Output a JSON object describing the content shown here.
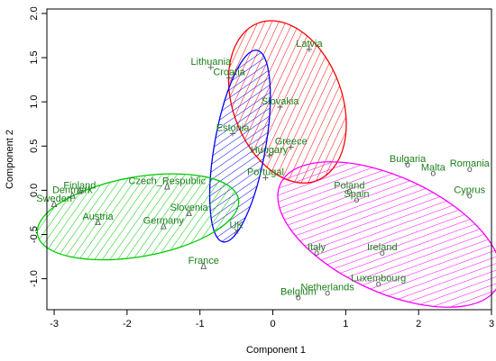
{
  "chart_data": {
    "type": "scatter",
    "xlabel": "Component 1",
    "ylabel": "Component 2",
    "xlim": [
      -3.1,
      3.0
    ],
    "ylim": [
      -1.35,
      2.05
    ],
    "x_ticks": [
      -3,
      -2,
      -1,
      0,
      1,
      2,
      3
    ],
    "y_ticks": [
      -1.0,
      -0.5,
      0.0,
      0.5,
      1.0,
      1.5,
      2.0
    ],
    "label_color": "#1a7f1a",
    "points": [
      {
        "label": "Latvia",
        "x": 0.5,
        "y": 1.6,
        "symbol": "+"
      },
      {
        "label": "Lithuania",
        "x": -0.85,
        "y": 1.4,
        "symbol": "+"
      },
      {
        "label": "Croatia",
        "x": -0.6,
        "y": 1.28,
        "symbol": "+"
      },
      {
        "label": "Slovakia",
        "x": 0.1,
        "y": 0.95,
        "symbol": "+"
      },
      {
        "label": "Estonia",
        "x": -0.55,
        "y": 0.65,
        "symbol": "+"
      },
      {
        "label": "Hungary",
        "x": -0.05,
        "y": 0.4,
        "symbol": "+"
      },
      {
        "label": "Greece",
        "x": 0.25,
        "y": 0.5,
        "symbol": "+"
      },
      {
        "label": "Portugal",
        "x": -0.1,
        "y": 0.15,
        "symbol": "+"
      },
      {
        "label": "UK",
        "x": -0.5,
        "y": -0.45,
        "symbol": "x"
      },
      {
        "label": "Czech_Respublic",
        "x": -1.45,
        "y": 0.05,
        "symbol": "Δ"
      },
      {
        "label": "Finland",
        "x": -2.65,
        "y": 0.0,
        "symbol": "Δ"
      },
      {
        "label": "Denmark",
        "x": -2.75,
        "y": -0.05,
        "symbol": "Δ"
      },
      {
        "label": "Sweden",
        "x": -3.0,
        "y": -0.15,
        "symbol": "Δ"
      },
      {
        "label": "Slovenia",
        "x": -1.15,
        "y": -0.25,
        "symbol": "Δ"
      },
      {
        "label": "Austria",
        "x": -2.4,
        "y": -0.35,
        "symbol": "Δ"
      },
      {
        "label": "Germany",
        "x": -1.5,
        "y": -0.4,
        "symbol": "Δ"
      },
      {
        "label": "France",
        "x": -0.95,
        "y": -0.85,
        "symbol": "Δ"
      },
      {
        "label": "Poland",
        "x": 1.05,
        "y": 0.0,
        "symbol": "o"
      },
      {
        "label": "Bulgaria",
        "x": 1.85,
        "y": 0.3,
        "symbol": "o"
      },
      {
        "label": "Malta",
        "x": 2.2,
        "y": 0.2,
        "symbol": "o"
      },
      {
        "label": "Romania",
        "x": 2.7,
        "y": 0.25,
        "symbol": "o"
      },
      {
        "label": "Spain",
        "x": 1.15,
        "y": -0.1,
        "symbol": "o"
      },
      {
        "label": "Cyprus",
        "x": 2.7,
        "y": -0.05,
        "symbol": "o"
      },
      {
        "label": "Italy",
        "x": 0.6,
        "y": -0.7,
        "symbol": "o"
      },
      {
        "label": "Ireland",
        "x": 1.5,
        "y": -0.7,
        "symbol": "o"
      },
      {
        "label": "Luxembourg",
        "x": 1.45,
        "y": -1.05,
        "symbol": "o"
      },
      {
        "label": "Netherlands",
        "x": 0.75,
        "y": -1.15,
        "symbol": "o"
      },
      {
        "label": "Belgium",
        "x": 0.35,
        "y": -1.2,
        "symbol": "o"
      }
    ],
    "clusters": [
      {
        "color": "#ff0000",
        "cx": 0.2,
        "cy": 1.0,
        "rx": 0.75,
        "ry": 0.95,
        "angle_deg": -20
      },
      {
        "color": "#0000ff",
        "cx": -0.45,
        "cy": 0.5,
        "rx": 0.35,
        "ry": 1.1,
        "angle_deg": 10
      },
      {
        "color": "#00cc00",
        "cx": -1.85,
        "cy": -0.3,
        "rx": 1.4,
        "ry": 0.45,
        "angle_deg": -10
      },
      {
        "color": "#ff00ff",
        "cx": 1.6,
        "cy": -0.5,
        "rx": 1.65,
        "ry": 0.65,
        "angle_deg": 25
      }
    ]
  }
}
